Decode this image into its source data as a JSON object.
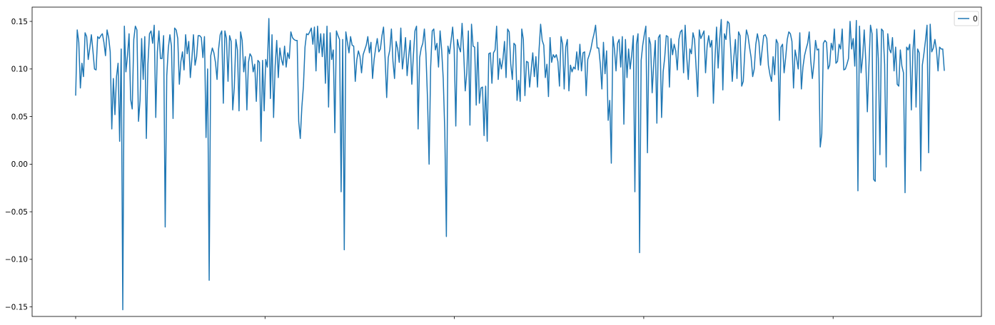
{
  "chart_data": {
    "type": "line",
    "title": "",
    "xlabel": "",
    "ylabel": "",
    "ylim": [
      -0.16,
      0.165
    ],
    "y_ticks": [
      -0.15,
      -0.1,
      -0.05,
      0.0,
      0.05,
      0.1,
      0.15
    ],
    "y_tick_labels": [
      "−0.15",
      "−0.10",
      "−0.05",
      "0.00",
      "0.05",
      "0.10",
      "0.15"
    ],
    "x_tick_count": 5,
    "x_tick_labels_visible": false,
    "legend": {
      "position": "upper right",
      "entries": [
        "0"
      ]
    },
    "grid": false,
    "series": [
      {
        "name": "0",
        "color": "#1f77b4",
        "values": [
          0.072,
          0.141,
          0.128,
          0.08,
          0.106,
          0.092,
          0.138,
          0.134,
          0.11,
          0.122,
          0.136,
          0.119,
          0.1,
          0.099,
          0.134,
          0.132,
          0.135,
          0.137,
          0.128,
          0.114,
          0.141,
          0.133,
          0.118,
          0.037,
          0.09,
          0.052,
          0.092,
          0.106,
          0.024,
          0.121,
          -0.153,
          0.145,
          0.097,
          0.114,
          0.137,
          0.068,
          0.058,
          0.131,
          0.145,
          0.141,
          0.045,
          0.067,
          0.132,
          0.089,
          0.134,
          0.027,
          0.105,
          0.137,
          0.14,
          0.127,
          0.146,
          0.049,
          0.118,
          0.14,
          0.111,
          0.111,
          0.135,
          -0.066,
          0.093,
          0.122,
          0.136,
          0.124,
          0.048,
          0.143,
          0.141,
          0.132,
          0.084,
          0.108,
          0.118,
          0.099,
          0.136,
          0.116,
          0.129,
          0.091,
          0.111,
          0.136,
          0.104,
          0.113,
          0.135,
          0.135,
          0.133,
          0.112,
          0.134,
          0.028,
          0.1,
          -0.122,
          0.114,
          0.122,
          0.117,
          0.107,
          0.089,
          0.121,
          0.136,
          0.14,
          0.064,
          0.14,
          0.132,
          0.087,
          0.135,
          0.129,
          0.057,
          0.081,
          0.131,
          0.12,
          0.056,
          0.139,
          0.13,
          0.097,
          0.113,
          0.057,
          0.107,
          0.116,
          0.113,
          0.097,
          0.105,
          0.066,
          0.109,
          0.107,
          0.024,
          0.109,
          0.056,
          0.11,
          0.102,
          0.153,
          0.069,
          0.136,
          0.049,
          0.103,
          0.13,
          0.091,
          0.122,
          0.11,
          0.104,
          0.124,
          0.102,
          0.117,
          0.111,
          0.139,
          0.133,
          0.131,
          0.13,
          0.13,
          0.045,
          0.027,
          0.06,
          0.082,
          0.123,
          0.137,
          0.136,
          0.139,
          0.143,
          0.126,
          0.144,
          0.098,
          0.145,
          0.117,
          0.137,
          0.113,
          0.137,
          0.085,
          0.145,
          0.06,
          0.138,
          0.11,
          0.12,
          0.033,
          0.14,
          0.135,
          0.131,
          -0.029,
          0.131,
          -0.09,
          0.139,
          0.128,
          0.117,
          0.134,
          0.125,
          0.124,
          0.087,
          0.11,
          0.119,
          0.113,
          0.096,
          0.115,
          0.12,
          0.125,
          0.134,
          0.117,
          0.128,
          0.09,
          0.11,
          0.122,
          0.132,
          0.118,
          0.121,
          0.135,
          0.144,
          0.111,
          0.07,
          0.112,
          0.12,
          0.142,
          0.108,
          0.09,
          0.129,
          0.121,
          0.107,
          0.143,
          0.1,
          0.114,
          0.133,
          0.093,
          0.113,
          0.13,
          0.084,
          0.114,
          0.14,
          0.145,
          0.037,
          0.112,
          0.122,
          0.127,
          0.142,
          0.116,
          0.068,
          0.0,
          0.102,
          0.14,
          0.142,
          0.12,
          0.127,
          0.102,
          0.14,
          0.12,
          0.09,
          0.034,
          -0.076,
          0.124,
          0.116,
          0.13,
          0.144,
          0.12,
          0.04,
          0.131,
          0.123,
          0.118,
          0.148,
          0.118,
          0.077,
          0.096,
          0.14,
          0.041,
          0.147,
          0.124,
          0.123,
          0.062,
          0.128,
          0.064,
          0.08,
          0.081,
          0.03,
          0.082,
          0.024,
          0.116,
          0.117,
          0.085,
          0.117,
          0.12,
          0.145,
          0.089,
          0.111,
          0.1,
          0.11,
          0.129,
          0.091,
          0.142,
          0.139,
          0.105,
          0.089,
          0.127,
          0.125,
          0.067,
          0.088,
          0.066,
          0.142,
          0.131,
          0.072,
          0.108,
          0.107,
          0.081,
          0.099,
          0.117,
          0.092,
          0.113,
          0.081,
          0.12,
          0.147,
          0.13,
          0.125,
          0.091,
          0.105,
          0.071,
          0.133,
          0.107,
          0.115,
          0.112,
          0.115,
          0.108,
          0.082,
          0.134,
          0.126,
          0.079,
          0.123,
          0.131,
          0.077,
          0.104,
          0.097,
          0.102,
          0.1,
          0.118,
          0.099,
          0.126,
          0.098,
          0.117,
          0.118,
          0.072,
          0.11,
          0.115,
          0.121,
          0.13,
          0.137,
          0.146,
          0.122,
          0.122,
          0.105,
          0.079,
          0.128,
          0.095,
          0.119,
          0.046,
          0.067,
          0.001,
          0.134,
          0.121,
          0.098,
          0.127,
          0.131,
          0.102,
          0.134,
          0.042,
          0.131,
          0.091,
          0.121,
          0.1,
          0.115,
          0.135,
          -0.029,
          0.126,
          0.137,
          -0.093,
          0.109,
          0.125,
          0.136,
          0.145,
          0.012,
          0.133,
          0.126,
          0.075,
          0.105,
          0.13,
          0.043,
          0.133,
          0.136,
          0.049,
          0.097,
          0.112,
          0.135,
          0.134,
          0.081,
          0.132,
          0.115,
          0.126,
          0.119,
          0.099,
          0.131,
          0.139,
          0.141,
          0.096,
          0.146,
          0.113,
          0.089,
          0.121,
          0.116,
          0.138,
          0.131,
          0.101,
          0.071,
          0.141,
          0.132,
          0.136,
          0.14,
          0.096,
          0.124,
          0.135,
          0.123,
          0.13,
          0.064,
          0.111,
          0.144,
          0.101,
          0.132,
          0.152,
          0.078,
          0.137,
          0.131,
          0.15,
          0.148,
          0.121,
          0.087,
          0.112,
          0.131,
          0.09,
          0.139,
          0.135,
          0.082,
          0.087,
          0.119,
          0.141,
          0.135,
          0.123,
          0.112,
          0.092,
          0.1,
          0.126,
          0.137,
          0.128,
          0.104,
          0.12,
          0.135,
          0.136,
          0.132,
          0.104,
          0.094,
          0.087,
          0.113,
          0.094,
          0.131,
          0.127,
          0.046,
          0.123,
          0.126,
          0.096,
          0.112,
          0.131,
          0.139,
          0.137,
          0.129,
          0.08,
          0.12,
          0.111,
          0.1,
          0.138,
          0.079,
          0.102,
          0.114,
          0.121,
          0.127,
          0.139,
          0.108,
          0.09,
          0.106,
          0.13,
          0.12,
          0.121,
          0.018,
          0.032,
          0.127,
          0.13,
          0.128,
          0.1,
          0.104,
          0.127,
          0.12,
          0.142,
          0.106,
          0.108,
          0.126,
          0.121,
          0.142,
          0.099,
          0.1,
          0.105,
          0.111,
          0.15,
          0.121,
          0.132,
          0.103,
          0.151,
          -0.028,
          0.145,
          0.096,
          0.112,
          0.141,
          0.109,
          0.055,
          0.103,
          0.146,
          0.137,
          -0.016,
          -0.018,
          0.142,
          0.111,
          0.01,
          0.142,
          0.14,
          0.105,
          -0.003,
          0.137,
          0.121,
          0.117,
          0.133,
          0.098,
          0.123,
          0.084,
          0.082,
          0.12,
          0.103,
          0.096,
          -0.03,
          0.123,
          0.12,
          0.126,
          0.057,
          0.119,
          0.141,
          0.06,
          0.121,
          0.117,
          -0.007,
          0.104,
          0.116,
          0.13,
          0.146,
          0.012,
          0.147,
          0.118,
          0.122,
          0.131,
          0.12,
          0.098,
          0.123,
          0.121,
          0.121,
          0.098
        ]
      }
    ]
  }
}
